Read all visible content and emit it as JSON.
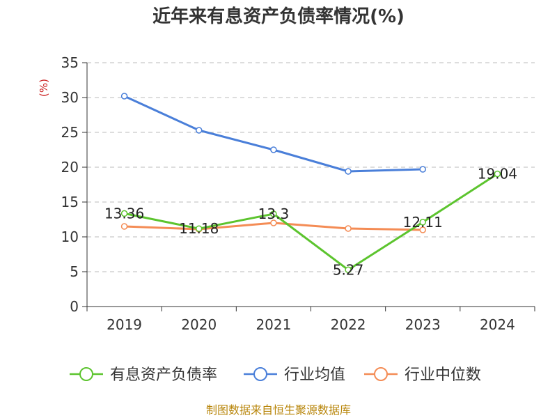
{
  "colors": {
    "series": [
      "#5cc42e",
      "#4a7fd9",
      "#f48c55"
    ],
    "unit": "#cc2222",
    "source": "#b8860b",
    "grid": "#bbbbbb",
    "axis": "#333333"
  },
  "chart_data": {
    "type": "line",
    "title": "近年来有息资产负债率情况(%)",
    "ylabel": "(%)",
    "categories": [
      "2019",
      "2020",
      "2021",
      "2022",
      "2023",
      "2024"
    ],
    "ylim": [
      0,
      35
    ],
    "yticks": [
      0,
      5,
      10,
      15,
      20,
      25,
      30,
      35
    ],
    "grid": true,
    "legend_position": "bottom",
    "series": [
      {
        "name": "有息资产负债率",
        "values": [
          13.36,
          11.18,
          13.3,
          5.27,
          12.11,
          19.04
        ],
        "labels": [
          "13.36",
          "11.18",
          "13.3",
          "5.27",
          "12.11",
          "19.04"
        ]
      },
      {
        "name": "行业均值",
        "values": [
          30.2,
          25.3,
          22.5,
          19.4,
          19.7,
          null
        ]
      },
      {
        "name": "行业中位数",
        "values": [
          11.5,
          11.1,
          12.0,
          11.2,
          11.0,
          null
        ]
      }
    ],
    "source": "制图数据来自恒生聚源数据库"
  }
}
